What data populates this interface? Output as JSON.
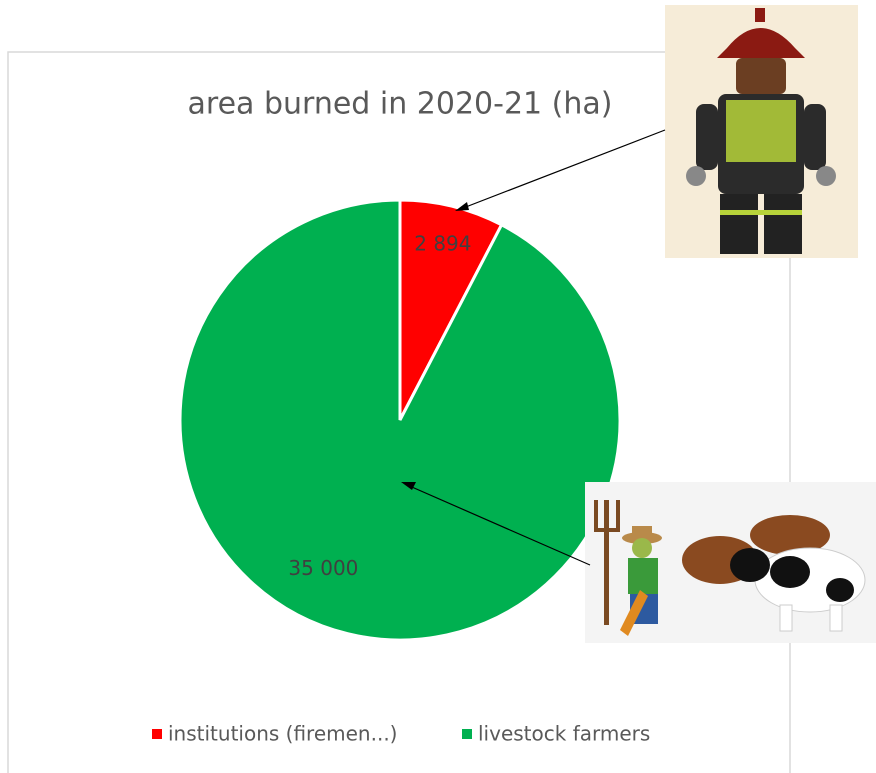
{
  "chart_data": {
    "type": "pie",
    "title": "area burned in 2020-21 (ha)",
    "categories": [
      "institutions (firemen...)",
      "livestock farmers"
    ],
    "values": [
      2894,
      35000
    ],
    "value_labels": [
      "2 894",
      "35 000"
    ],
    "colors": [
      "#ff0000",
      "#00b050"
    ],
    "legend": "bottom"
  }
}
